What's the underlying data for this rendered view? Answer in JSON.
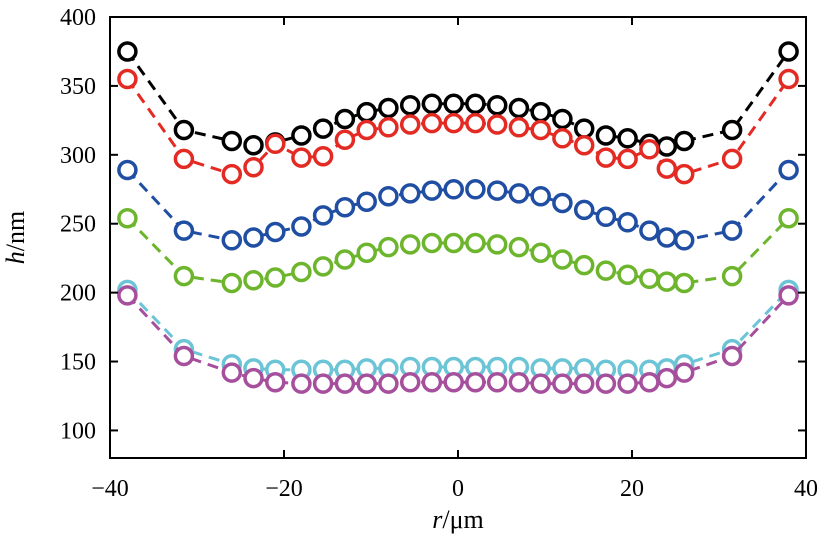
{
  "chart_data": {
    "type": "scatter",
    "xlabel": {
      "var": "r",
      "unit": "/μm"
    },
    "ylabel": {
      "var": "h",
      "unit": "/nm"
    },
    "xlim": [
      -40,
      40
    ],
    "ylim": [
      80,
      400
    ],
    "xticks": [
      -40,
      -20,
      0,
      20,
      40
    ],
    "yticks": [
      100,
      150,
      200,
      250,
      300,
      350,
      400
    ],
    "xtick_labels": [
      "−40",
      "−20",
      "0",
      "20",
      "40"
    ],
    "ytick_labels": [
      "100",
      "150",
      "200",
      "250",
      "300",
      "350",
      "400"
    ],
    "marker": "open-circle",
    "line_style": "dashed",
    "grid": false,
    "x": [
      -38,
      -31.5,
      -26,
      -23.5,
      -21,
      -18,
      -15.5,
      -13,
      -10.5,
      -8,
      -5.5,
      -3,
      -0.5,
      2,
      4.5,
      7,
      9.5,
      12,
      14.5,
      17,
      19.5,
      22,
      24,
      26,
      31.5,
      38
    ],
    "series": [
      {
        "color": "#000000",
        "values": [
          375,
          318,
          310,
          307,
          309,
          314,
          319,
          326,
          331,
          334,
          336,
          337,
          337,
          337,
          336,
          334,
          331,
          326,
          319,
          314,
          312,
          308,
          306,
          310,
          318,
          375
        ]
      },
      {
        "color": "#e32b24",
        "values": [
          355,
          297,
          286,
          291,
          308,
          298,
          299,
          311,
          318,
          320,
          322,
          323,
          323,
          323,
          322,
          320,
          318,
          312,
          307,
          298,
          297,
          304,
          290,
          286,
          297,
          355
        ]
      },
      {
        "color": "#1f4ea3",
        "values": [
          289,
          245,
          238,
          240,
          244,
          248,
          256,
          262,
          266,
          270,
          272,
          274,
          275,
          275,
          274,
          272,
          270,
          265,
          260,
          255,
          251,
          245,
          240,
          238,
          245,
          289
        ]
      },
      {
        "color": "#6cb52c",
        "values": [
          254,
          212,
          207,
          209,
          211,
          215,
          219,
          224,
          229,
          233,
          235,
          236,
          236,
          236,
          235,
          233,
          229,
          224,
          220,
          216,
          213,
          210,
          208,
          207,
          212,
          254
        ]
      },
      {
        "color": "#6cc5d6",
        "values": [
          202,
          159,
          148,
          145,
          144,
          144,
          144,
          144,
          145,
          145,
          146,
          146,
          146,
          146,
          146,
          146,
          145,
          145,
          145,
          144,
          144,
          144,
          145,
          148,
          159,
          202
        ]
      },
      {
        "color": "#a64f9c",
        "values": [
          198,
          154,
          142,
          138,
          135,
          134,
          134,
          134,
          134,
          134,
          135,
          135,
          135,
          135,
          135,
          135,
          134,
          134,
          134,
          134,
          134,
          135,
          138,
          142,
          154,
          198
        ]
      }
    ]
  }
}
